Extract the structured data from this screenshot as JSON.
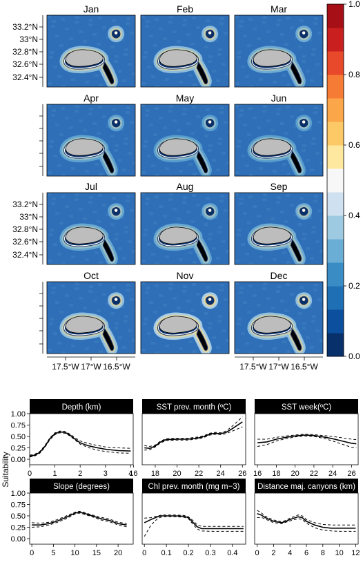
{
  "months": [
    "Jan",
    "Feb",
    "Mar",
    "Apr",
    "May",
    "Jun",
    "Jul",
    "Aug",
    "Sep",
    "Oct",
    "Nov",
    "Dec"
  ],
  "map_axes": {
    "lat_ticks": [
      "33.2°N",
      "33°N",
      "32.8°N",
      "32.6°N",
      "32.4°N"
    ],
    "lon_ticks": [
      "17.5°W",
      "17°W",
      "16.5°W"
    ]
  },
  "colorbar": {
    "ticks": [
      "0.0",
      "0.2",
      "0.4",
      "0.6",
      "0.8",
      "1.0"
    ],
    "min": 0,
    "max": 1,
    "colors": [
      "#08306b",
      "#0b4f9e",
      "#1f6fb4",
      "#3a8cc4",
      "#6aaed6",
      "#9ecae1",
      "#cfe1f0",
      "#f7f7f7",
      "#fee8a0",
      "#fdc866",
      "#fca64a",
      "#f67c35",
      "#e8492a",
      "#c9201f",
      "#a50f15"
    ]
  },
  "map_colors": {
    "ocean": "#2f6fb7",
    "island": "#bdbdbd",
    "shelf": "#8fb8dc"
  },
  "season_intensity": [
    0.55,
    0.55,
    0.35,
    0.25,
    0.2,
    0.2,
    0.3,
    0.3,
    0.35,
    0.6,
    0.75,
    0.6
  ],
  "response": {
    "y_label": "Suitability",
    "y_ticks": [
      "0.00",
      "0.25",
      "0.50",
      "0.75",
      "1.00"
    ],
    "panels": [
      {
        "title": "Depth (km)",
        "xlim": [
          0,
          4.1
        ],
        "x_ticks": [
          0,
          1,
          2,
          3,
          4
        ],
        "x": [
          0,
          0.2,
          0.4,
          0.6,
          0.8,
          1.0,
          1.2,
          1.4,
          1.6,
          1.8,
          2.0,
          2.3,
          2.6,
          3.0,
          3.5,
          4.0
        ],
        "mean": [
          0.07,
          0.09,
          0.15,
          0.28,
          0.45,
          0.56,
          0.6,
          0.59,
          0.53,
          0.44,
          0.36,
          0.3,
          0.26,
          0.22,
          0.19,
          0.18
        ],
        "upper": [
          0.09,
          0.11,
          0.17,
          0.3,
          0.47,
          0.58,
          0.62,
          0.61,
          0.55,
          0.47,
          0.4,
          0.35,
          0.31,
          0.27,
          0.25,
          0.24
        ],
        "lower": [
          0.05,
          0.07,
          0.13,
          0.26,
          0.43,
          0.54,
          0.58,
          0.57,
          0.51,
          0.42,
          0.33,
          0.26,
          0.21,
          0.17,
          0.14,
          0.13
        ]
      },
      {
        "title": "SST prev. month (ºC)",
        "xlim": [
          16.8,
          26.3
        ],
        "x_ticks": [
          16,
          18,
          20,
          22,
          24,
          26
        ],
        "x": [
          17.0,
          17.5,
          18.0,
          18.5,
          19.0,
          20.0,
          21.0,
          22.0,
          22.5,
          23.0,
          23.5,
          24.0,
          24.5,
          25.0,
          25.5,
          26.0
        ],
        "mean": [
          0.25,
          0.24,
          0.29,
          0.38,
          0.43,
          0.44,
          0.44,
          0.47,
          0.5,
          0.55,
          0.57,
          0.56,
          0.59,
          0.66,
          0.74,
          0.82
        ],
        "upper": [
          0.3,
          0.28,
          0.31,
          0.4,
          0.45,
          0.46,
          0.46,
          0.49,
          0.52,
          0.57,
          0.59,
          0.58,
          0.62,
          0.71,
          0.82,
          0.93
        ],
        "lower": [
          0.2,
          0.21,
          0.27,
          0.36,
          0.41,
          0.42,
          0.42,
          0.45,
          0.48,
          0.53,
          0.55,
          0.54,
          0.56,
          0.61,
          0.66,
          0.71
        ]
      },
      {
        "title": "SST week(ºC)",
        "xlim": [
          15.7,
          26.7
        ],
        "x_ticks": [
          16,
          18,
          20,
          22,
          24,
          26
        ],
        "x": [
          16.0,
          17.0,
          18.0,
          19.0,
          20.0,
          21.0,
          22.0,
          23.0,
          24.0,
          25.0,
          26.0,
          26.5
        ],
        "mean": [
          0.36,
          0.38,
          0.44,
          0.48,
          0.51,
          0.53,
          0.52,
          0.49,
          0.45,
          0.4,
          0.35,
          0.34
        ],
        "upper": [
          0.44,
          0.44,
          0.48,
          0.51,
          0.53,
          0.55,
          0.54,
          0.52,
          0.5,
          0.47,
          0.44,
          0.43
        ],
        "lower": [
          0.28,
          0.32,
          0.4,
          0.45,
          0.49,
          0.51,
          0.5,
          0.46,
          0.4,
          0.33,
          0.26,
          0.25
        ]
      },
      {
        "title": "Slope (degrees)",
        "xlim": [
          -0.5,
          23.5
        ],
        "x_ticks": [
          0,
          5,
          10,
          15,
          20
        ],
        "x": [
          0,
          2,
          4,
          6,
          8,
          10,
          11,
          12,
          14,
          16,
          18,
          20,
          22
        ],
        "mean": [
          0.3,
          0.3,
          0.33,
          0.39,
          0.47,
          0.56,
          0.58,
          0.56,
          0.5,
          0.44,
          0.4,
          0.33,
          0.3
        ],
        "upper": [
          0.35,
          0.34,
          0.36,
          0.42,
          0.5,
          0.58,
          0.6,
          0.58,
          0.52,
          0.47,
          0.43,
          0.36,
          0.33
        ],
        "lower": [
          0.25,
          0.26,
          0.3,
          0.36,
          0.44,
          0.54,
          0.56,
          0.54,
          0.48,
          0.41,
          0.37,
          0.3,
          0.26
        ]
      },
      {
        "title": "Chl prev. month (mg m−3)",
        "xlim": [
          -0.01,
          0.46
        ],
        "x_ticks": [
          0.0,
          0.1,
          0.2,
          0.3,
          0.4
        ],
        "x": [
          0.0,
          0.03,
          0.06,
          0.08,
          0.1,
          0.14,
          0.18,
          0.2,
          0.22,
          0.24,
          0.26,
          0.3,
          0.35,
          0.4,
          0.45
        ],
        "mean": [
          0.35,
          0.42,
          0.48,
          0.5,
          0.5,
          0.5,
          0.49,
          0.46,
          0.36,
          0.26,
          0.22,
          0.22,
          0.22,
          0.22,
          0.22
        ],
        "upper": [
          0.45,
          0.46,
          0.5,
          0.52,
          0.52,
          0.52,
          0.51,
          0.48,
          0.4,
          0.3,
          0.27,
          0.27,
          0.27,
          0.27,
          0.27
        ],
        "lower": [
          0.05,
          0.3,
          0.44,
          0.48,
          0.48,
          0.48,
          0.47,
          0.44,
          0.32,
          0.21,
          0.17,
          0.16,
          0.16,
          0.16,
          0.16
        ]
      },
      {
        "title": "Distance maj. canyons (km)",
        "xlim": [
          -0.3,
          12.3
        ],
        "x_ticks": [
          0,
          2,
          4,
          6,
          8,
          10,
          12
        ],
        "x": [
          0,
          0.5,
          1,
          1.5,
          2,
          3,
          3.5,
          4,
          5,
          5.5,
          6,
          7,
          8,
          9,
          10,
          11,
          12
        ],
        "mean": [
          0.55,
          0.52,
          0.46,
          0.42,
          0.38,
          0.35,
          0.38,
          0.42,
          0.48,
          0.46,
          0.38,
          0.3,
          0.25,
          0.23,
          0.23,
          0.23,
          0.23
        ],
        "upper": [
          0.62,
          0.57,
          0.49,
          0.45,
          0.41,
          0.37,
          0.4,
          0.45,
          0.52,
          0.5,
          0.42,
          0.35,
          0.31,
          0.3,
          0.3,
          0.3,
          0.3
        ],
        "lower": [
          0.46,
          0.47,
          0.43,
          0.39,
          0.35,
          0.33,
          0.36,
          0.39,
          0.44,
          0.42,
          0.34,
          0.24,
          0.19,
          0.17,
          0.16,
          0.16,
          0.16
        ]
      }
    ]
  },
  "chart_data": [
    {
      "type": "heatmap",
      "panels": [
        "Jan",
        "Feb",
        "Mar",
        "Apr",
        "May",
        "Jun",
        "Jul",
        "Aug",
        "Sep",
        "Oct",
        "Nov",
        "Dec"
      ],
      "ylabels": [
        "33.2°N",
        "33°N",
        "32.8°N",
        "32.6°N",
        "32.4°N"
      ],
      "xlabels": [
        "17.5°W",
        "17°W",
        "16.5°W"
      ],
      "colorbar_range": [
        0,
        1
      ],
      "colorbar_ticks": [
        0.0,
        0.2,
        0.4,
        0.6,
        0.8,
        1.0
      ]
    },
    {
      "type": "line",
      "ylabel": "Suitability",
      "ylim": [
        0,
        1
      ],
      "panels": [
        "Depth (km)",
        "SST prev. month (ºC)",
        "SST week(ºC)",
        "Slope (degrees)",
        "Chl prev. month (mg m−3)",
        "Distance maj. canyons (km)"
      ]
    }
  ]
}
